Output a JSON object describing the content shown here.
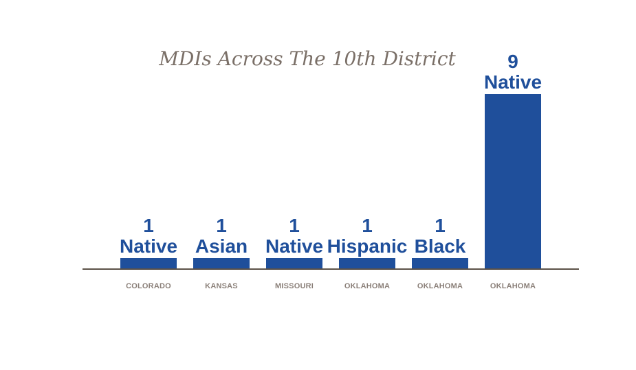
{
  "chart_data": {
    "type": "bar",
    "title": "MDIs Across The 10th District",
    "categories": [
      "COLORADO",
      "KANSAS",
      "MISSOURI",
      "OKLAHOMA",
      "OKLAHOMA",
      "OKLAHOMA"
    ],
    "values": [
      1,
      1,
      1,
      1,
      1,
      9
    ],
    "bar_labels": [
      "Native",
      "Asian",
      "Native",
      "Hispanic",
      "Black",
      "Native"
    ],
    "xlabel": "",
    "ylabel": "",
    "ylim": [
      0,
      9
    ],
    "grid": false,
    "legend": "none",
    "colors": {
      "bar": "#1f4f9b",
      "axis": "#5b5147",
      "title": "#7a6f67",
      "category_text": "#8a7f78"
    }
  }
}
